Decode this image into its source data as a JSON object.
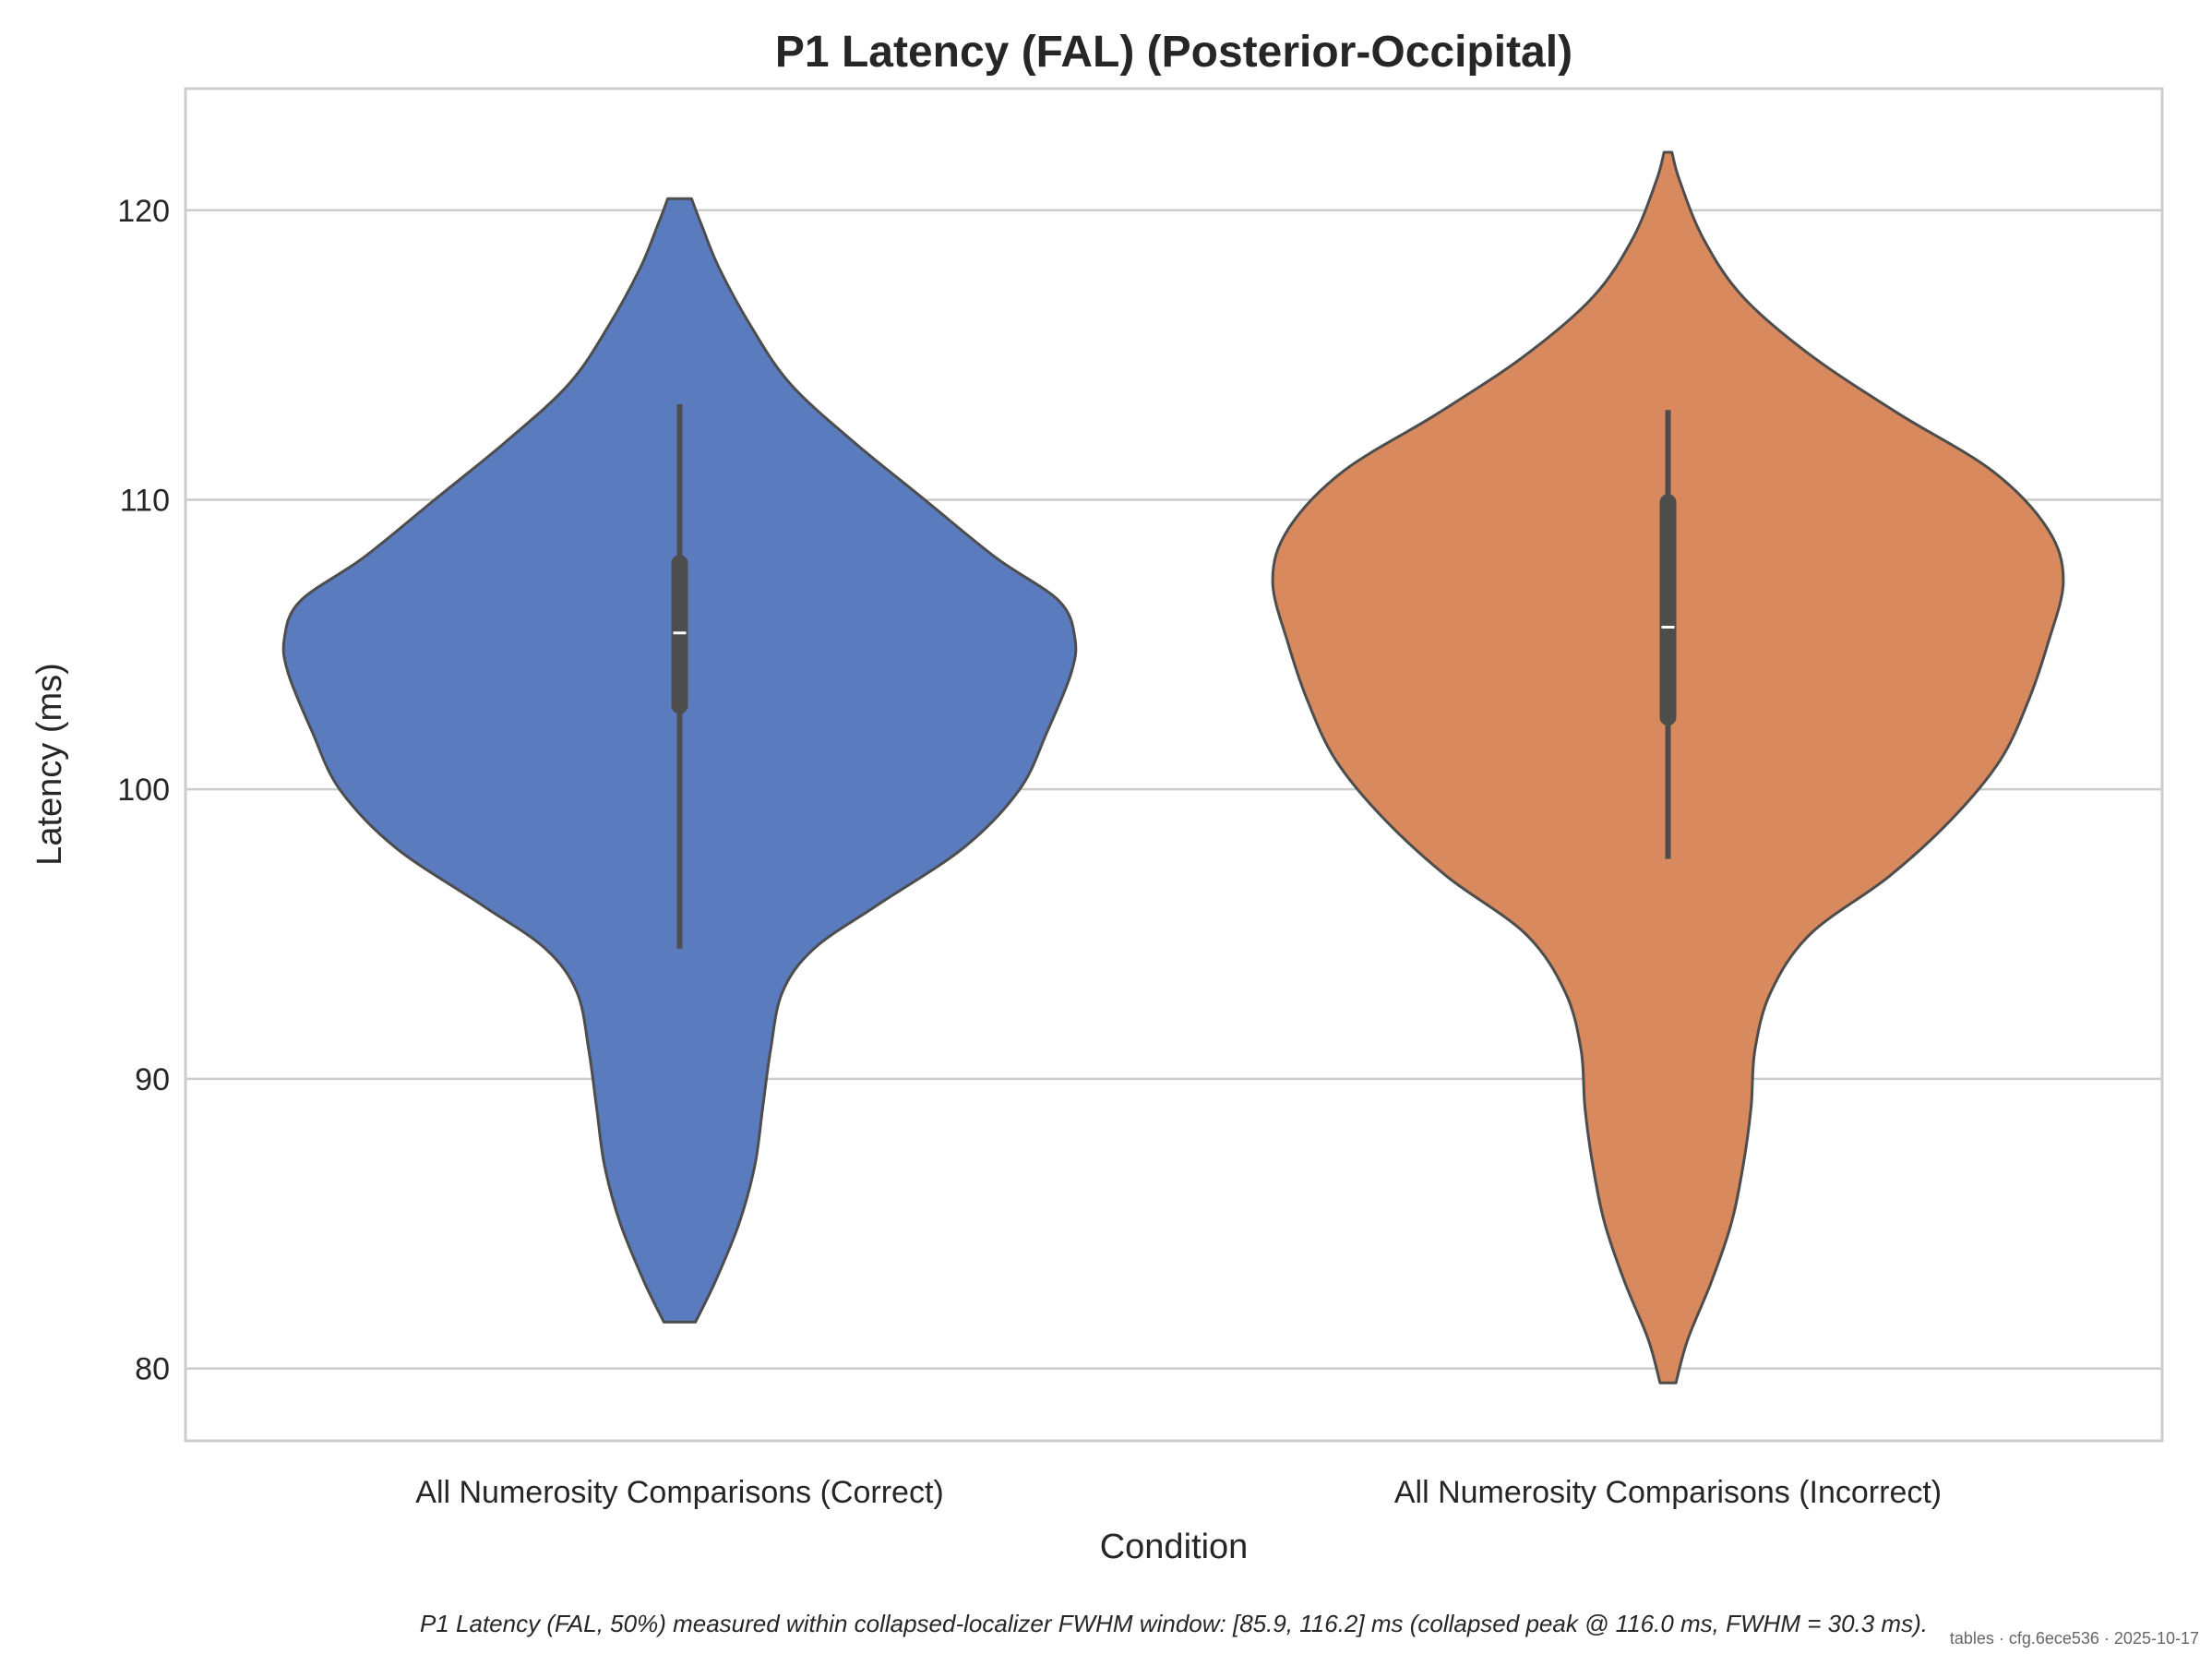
{
  "chart_data": {
    "type": "violin",
    "title": "P1 Latency (FAL) (Posterior-Occipital)",
    "xlabel": "Condition",
    "ylabel": "Latency (ms)",
    "categories": [
      "All Numerosity Comparisons (Correct)",
      "All Numerosity Comparisons (Incorrect)"
    ],
    "ylim": [
      77.5,
      124.2
    ],
    "yticks": [
      80,
      90,
      100,
      110,
      120
    ],
    "grid": "horizontal",
    "series": [
      {
        "color": "#5a7cbe",
        "range": [
          81.6,
          120.4
        ],
        "median": 105.4,
        "q1": 102.6,
        "q3": 108.1,
        "whisker_low": 94.5,
        "whisker_high": 113.3,
        "density": [
          [
            81.6,
            0.04
          ],
          [
            83.0,
            0.09
          ],
          [
            85.0,
            0.15
          ],
          [
            87.0,
            0.19
          ],
          [
            89.0,
            0.21
          ],
          [
            91.0,
            0.23
          ],
          [
            93.0,
            0.26
          ],
          [
            94.5,
            0.34
          ],
          [
            96.0,
            0.5
          ],
          [
            98.0,
            0.72
          ],
          [
            100.0,
            0.86
          ],
          [
            102.0,
            0.93
          ],
          [
            104.0,
            0.99
          ],
          [
            105.2,
            1.0
          ],
          [
            106.5,
            0.96
          ],
          [
            108.0,
            0.8
          ],
          [
            110.0,
            0.62
          ],
          [
            112.0,
            0.44
          ],
          [
            114.0,
            0.28
          ],
          [
            116.0,
            0.18
          ],
          [
            118.0,
            0.1
          ],
          [
            119.5,
            0.055
          ],
          [
            120.4,
            0.03
          ]
        ]
      },
      {
        "color": "#d8895e",
        "range": [
          79.5,
          122.0
        ],
        "median": 105.6,
        "q1": 102.2,
        "q3": 110.2,
        "whisker_low": 97.6,
        "whisker_high": 113.1,
        "density": [
          [
            79.5,
            0.02
          ],
          [
            81.0,
            0.05
          ],
          [
            83.0,
            0.11
          ],
          [
            85.0,
            0.16
          ],
          [
            87.0,
            0.19
          ],
          [
            89.0,
            0.21
          ],
          [
            91.0,
            0.22
          ],
          [
            93.0,
            0.26
          ],
          [
            95.0,
            0.36
          ],
          [
            97.0,
            0.56
          ],
          [
            99.0,
            0.72
          ],
          [
            101.0,
            0.84
          ],
          [
            103.0,
            0.91
          ],
          [
            105.0,
            0.96
          ],
          [
            107.2,
            1.0
          ],
          [
            109.0,
            0.96
          ],
          [
            111.0,
            0.82
          ],
          [
            113.0,
            0.58
          ],
          [
            115.0,
            0.36
          ],
          [
            117.0,
            0.19
          ],
          [
            119.0,
            0.09
          ],
          [
            121.0,
            0.03
          ],
          [
            122.0,
            0.01
          ]
        ]
      }
    ]
  },
  "caption": "P1 Latency (FAL, 50%) measured within collapsed-localizer FWHM window: [85.9, 116.2] ms (collapsed peak @ 116.0 ms, FWHM = 30.3 ms).",
  "stamp": "tables · cfg.6ece536 · 2025-10-17"
}
